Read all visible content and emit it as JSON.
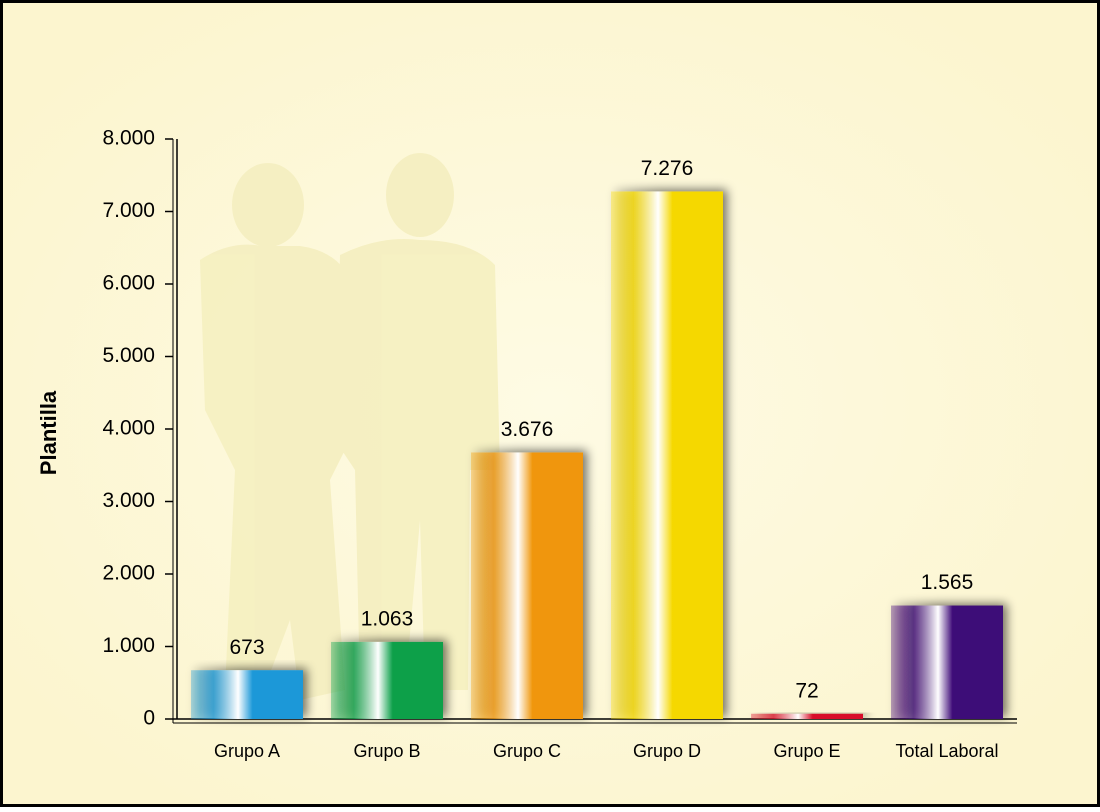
{
  "chart_data": {
    "type": "bar",
    "y_label": "Plantilla",
    "categories": [
      "Grupo A",
      "Grupo B",
      "Grupo C",
      "Grupo D",
      "Grupo E",
      "Total Laboral"
    ],
    "values": [
      673,
      1063,
      3676,
      7276,
      72,
      1565
    ],
    "value_labels": [
      "673",
      "1.063",
      "3.676",
      "7.276",
      "72",
      "1.565"
    ],
    "colors": [
      "#1b98d8",
      "#0ca04a",
      "#f0960a",
      "#f5d800",
      "#d8102a",
      "#3e0a78"
    ],
    "ylim": [
      0,
      8000
    ],
    "yticks": [
      0,
      {
        "value": 1000,
        "label": "1.000"
      },
      {
        "value": 2000,
        "label": "2.000"
      },
      {
        "value": 3000,
        "label": "3.000"
      },
      {
        "value": 4000,
        "label": "4.000"
      },
      {
        "value": 5000,
        "label": "5.000"
      },
      {
        "value": 6000,
        "label": "6.000"
      },
      {
        "value": 7000,
        "label": "7.000"
      },
      {
        "value": 8000,
        "label": "8.000"
      }
    ]
  }
}
